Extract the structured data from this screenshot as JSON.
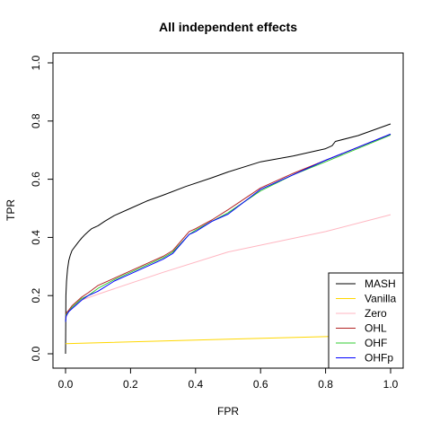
{
  "chart_data": {
    "type": "line",
    "title": "All independent effects",
    "xlabel": "FPR",
    "ylabel": "TPR",
    "xlim": [
      0,
      1
    ],
    "ylim": [
      0,
      1
    ],
    "xticks": [
      0.0,
      0.2,
      0.4,
      0.6,
      0.8,
      1.0
    ],
    "yticks": [
      0.0,
      0.2,
      0.4,
      0.6,
      0.8,
      1.0
    ],
    "x_tick_labels": [
      "0.0",
      "0.2",
      "0.4",
      "0.6",
      "0.8",
      "1.0"
    ],
    "y_tick_labels": [
      "0.0",
      "0.2",
      "0.4",
      "0.6",
      "0.8",
      "1.0"
    ],
    "grid": false,
    "legend_position": "bottom-right",
    "series": [
      {
        "name": "MASH",
        "color": "#000000",
        "x": [
          0,
          0.001,
          0.003,
          0.006,
          0.01,
          0.015,
          0.02,
          0.03,
          0.04,
          0.05,
          0.06,
          0.07,
          0.08,
          0.1,
          0.12,
          0.15,
          0.2,
          0.25,
          0.3,
          0.37,
          0.45,
          0.5,
          0.6,
          0.7,
          0.8,
          0.82,
          0.83,
          0.9,
          1.0
        ],
        "y": [
          0.0,
          0.2,
          0.25,
          0.29,
          0.32,
          0.34,
          0.355,
          0.37,
          0.385,
          0.398,
          0.41,
          0.42,
          0.43,
          0.44,
          0.455,
          0.475,
          0.5,
          0.525,
          0.545,
          0.575,
          0.605,
          0.625,
          0.66,
          0.68,
          0.705,
          0.715,
          0.73,
          0.75,
          0.79
        ]
      },
      {
        "name": "Vanilla",
        "color": "#FFD700",
        "x": [
          0,
          0.5,
          1.0
        ],
        "y": [
          0.035,
          0.05,
          0.065
        ]
      },
      {
        "name": "Zero",
        "color": "#FFB6C1",
        "x": [
          0,
          0.01,
          0.03,
          0.05,
          0.1,
          0.3,
          0.5,
          0.8,
          1.0
        ],
        "y": [
          0.12,
          0.15,
          0.17,
          0.185,
          0.205,
          0.28,
          0.35,
          0.42,
          0.478
        ]
      },
      {
        "name": "OHL",
        "color": "#B22222",
        "x": [
          0,
          0.002,
          0.01,
          0.02,
          0.03,
          0.05,
          0.07,
          0.1,
          0.15,
          0.2,
          0.25,
          0.3,
          0.33,
          0.38,
          0.4,
          0.45,
          0.5,
          0.6,
          0.7,
          0.8,
          1.0
        ],
        "y": [
          0.11,
          0.14,
          0.15,
          0.165,
          0.175,
          0.195,
          0.21,
          0.235,
          0.26,
          0.285,
          0.31,
          0.335,
          0.355,
          0.42,
          0.43,
          0.46,
          0.495,
          0.57,
          0.62,
          0.665,
          0.755
        ]
      },
      {
        "name": "OHF",
        "color": "#33CC33",
        "x": [
          0,
          0.002,
          0.01,
          0.02,
          0.03,
          0.05,
          0.07,
          0.1,
          0.15,
          0.2,
          0.25,
          0.3,
          0.33,
          0.38,
          0.4,
          0.45,
          0.5,
          0.6,
          0.7,
          0.8,
          1.0
        ],
        "y": [
          0.11,
          0.135,
          0.145,
          0.16,
          0.17,
          0.19,
          0.2,
          0.225,
          0.255,
          0.28,
          0.305,
          0.33,
          0.35,
          0.41,
          0.425,
          0.455,
          0.485,
          0.56,
          0.615,
          0.66,
          0.752
        ]
      },
      {
        "name": "OHFp",
        "color": "#0000FF",
        "x": [
          0,
          0.002,
          0.01,
          0.02,
          0.03,
          0.05,
          0.07,
          0.1,
          0.15,
          0.2,
          0.25,
          0.3,
          0.33,
          0.38,
          0.4,
          0.45,
          0.5,
          0.6,
          0.7,
          0.8,
          1.0
        ],
        "y": [
          0.11,
          0.13,
          0.145,
          0.155,
          0.165,
          0.185,
          0.2,
          0.215,
          0.25,
          0.275,
          0.3,
          0.325,
          0.345,
          0.41,
          0.42,
          0.455,
          0.48,
          0.565,
          0.615,
          0.665,
          0.755
        ]
      }
    ]
  }
}
